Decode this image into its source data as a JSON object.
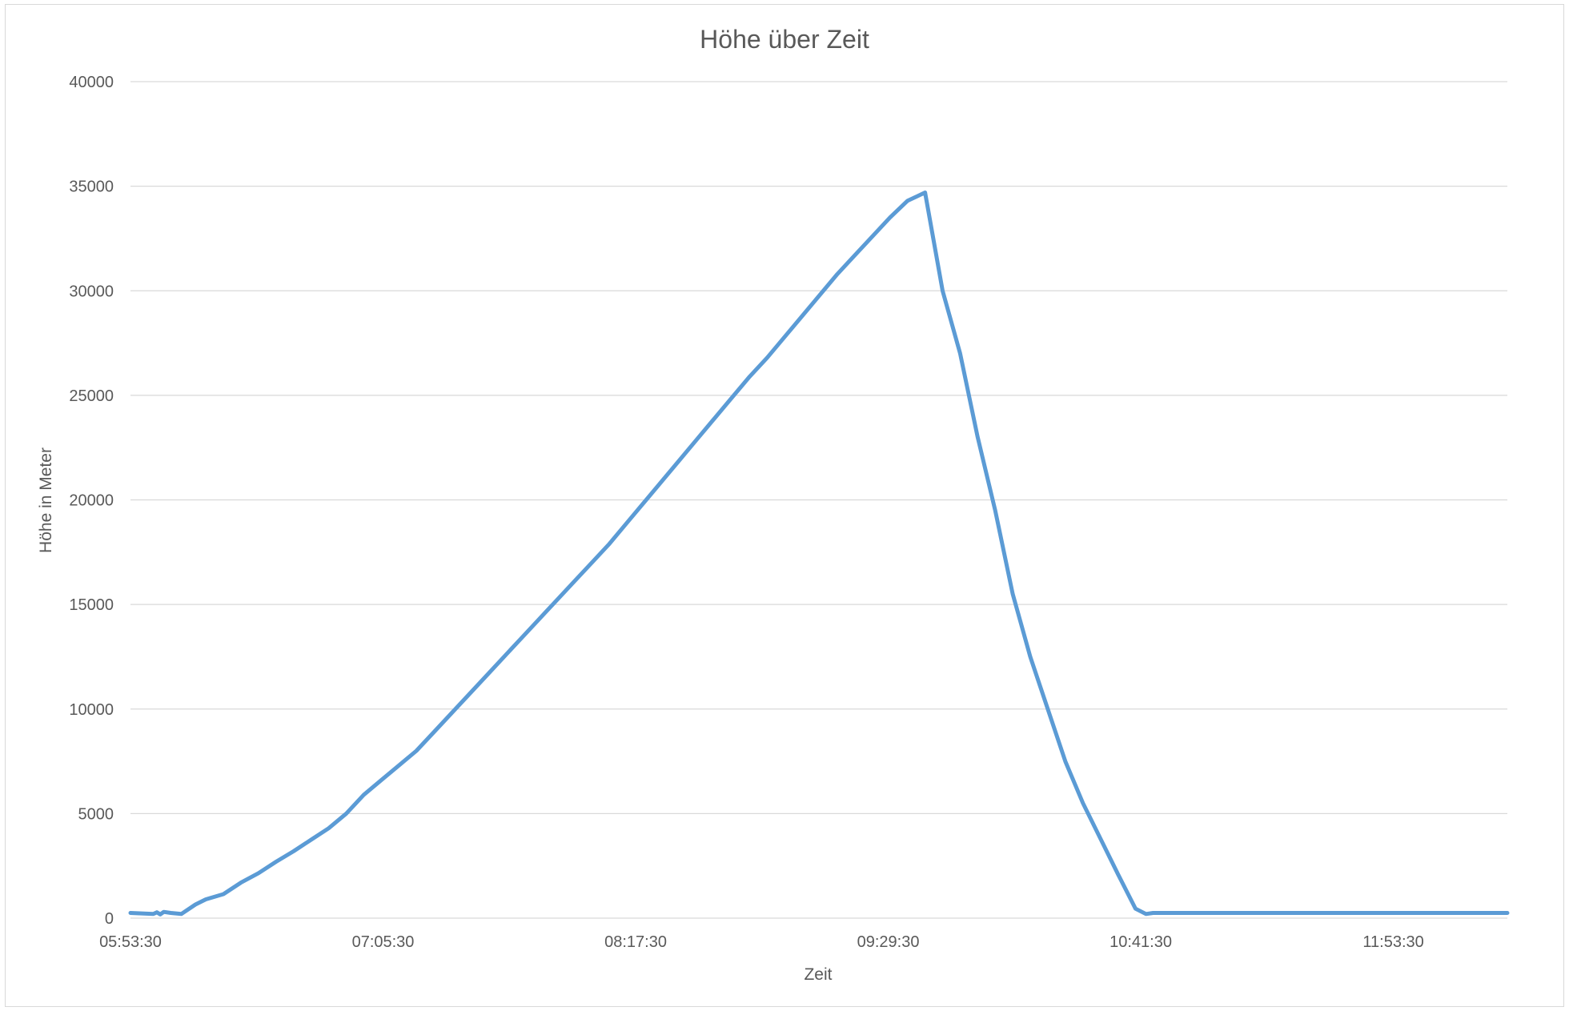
{
  "chart_data": {
    "type": "line",
    "title": "Höhe über Zeit",
    "xlabel": "Zeit",
    "ylabel": "Höhe in Meter",
    "ylim": [
      0,
      40000
    ],
    "yticks": [
      0,
      5000,
      10000,
      15000,
      20000,
      25000,
      30000,
      35000,
      40000
    ],
    "xlim": [
      "05:53:30",
      "12:26:00"
    ],
    "xticks": [
      "05:53:30",
      "07:05:30",
      "08:17:30",
      "09:29:30",
      "10:41:30",
      "11:53:30"
    ],
    "grid": true,
    "legend": "none",
    "colors": {
      "series": "#5b9bd5",
      "grid": "#d9d9d9",
      "text": "#595959"
    },
    "series": [
      {
        "x": [
          "05:53:30",
          "06:00:00",
          "06:01:00",
          "06:02:00",
          "06:03:00",
          "06:05:00",
          "06:08:00",
          "06:12:00",
          "06:15:00",
          "06:20:00",
          "06:25:00",
          "06:30:00",
          "06:35:00",
          "06:40:00",
          "06:45:00",
          "06:50:00",
          "06:55:00",
          "07:00:00",
          "07:05:00",
          "07:10:00",
          "07:15:00",
          "07:20:00",
          "07:25:00",
          "07:30:00",
          "07:35:00",
          "07:40:00",
          "07:45:00",
          "07:50:00",
          "07:55:00",
          "08:00:00",
          "08:05:00",
          "08:10:00",
          "08:15:00",
          "08:20:00",
          "08:25:00",
          "08:30:00",
          "08:35:00",
          "08:40:00",
          "08:45:00",
          "08:50:00",
          "08:55:00",
          "09:00:00",
          "09:05:00",
          "09:10:00",
          "09:15:00",
          "09:20:00",
          "09:25:00",
          "09:30:00",
          "09:35:00",
          "09:40:00",
          "09:45:00",
          "09:50:00",
          "09:55:00",
          "10:00:00",
          "10:05:00",
          "10:10:00",
          "10:15:00",
          "10:20:00",
          "10:25:00",
          "10:30:00",
          "10:35:00",
          "10:40:00",
          "10:43:00",
          "10:45:00",
          "10:46:00",
          "10:47:00",
          "10:49:00",
          "10:52:00",
          "10:55:00",
          "10:58:00",
          "11:00:00",
          "11:05:00",
          "11:10:00",
          "11:15:00",
          "11:20:00",
          "11:25:00",
          "11:30:00",
          "11:35:00",
          "11:40:00",
          "11:43:00",
          "11:44:00",
          "11:50:00",
          "12:00:00",
          "12:10:00",
          "12:20:00",
          "12:26:00"
        ],
        "y": [
          250,
          200,
          280,
          180,
          300,
          250,
          200,
          650,
          900,
          1150,
          1700,
          2150,
          2700,
          3200,
          3750,
          4300,
          5000,
          5900,
          6600,
          7300,
          8000,
          8900,
          9800,
          10700,
          11600,
          12500,
          13400,
          14300,
          15200,
          16100,
          17000,
          17900,
          18900,
          19900,
          20900,
          21900,
          22900,
          23900,
          24900,
          25900,
          26800,
          27800,
          28800,
          29800,
          30800,
          31700,
          32600,
          33500,
          34300,
          34700,
          30000,
          27000,
          23000,
          19500,
          15500,
          12500,
          10000,
          7500,
          5500,
          3800,
          2100,
          450,
          200,
          250,
          250,
          250,
          250,
          250,
          250,
          250,
          250,
          250,
          250,
          250,
          250,
          250,
          250,
          250,
          250,
          250,
          250,
          250,
          250,
          250,
          250,
          250
        ]
      }
    ]
  }
}
